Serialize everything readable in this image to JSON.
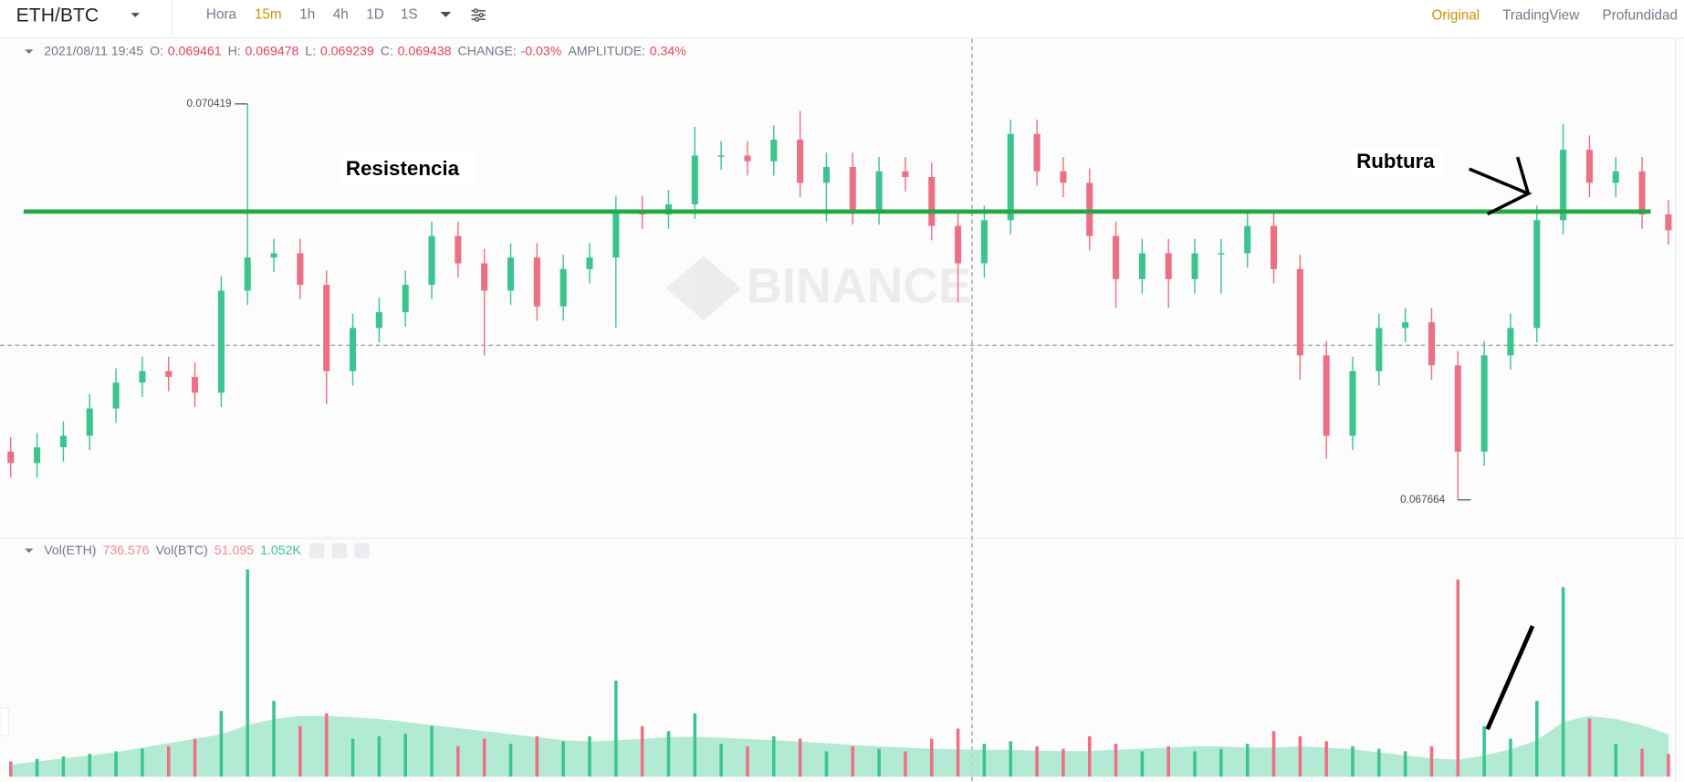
{
  "toolbar": {
    "symbol": "ETH/BTC",
    "intervals": [
      "Hora",
      "15m",
      "1h",
      "4h",
      "1D",
      "1S"
    ],
    "active_interval": 1,
    "views": [
      "Original",
      "TradingView",
      "Profundidad"
    ],
    "active_view": 0
  },
  "chart_data": {
    "type": "candlestick",
    "info": {
      "date": "2021/08/11 19:45",
      "fields": [
        {
          "label": "O:",
          "value": "0.069461"
        },
        {
          "label": "H:",
          "value": "0.069478"
        },
        {
          "label": "L:",
          "value": "0.069239"
        },
        {
          "label": "C:",
          "value": "0.069438"
        },
        {
          "label": "CHANGE:",
          "value": "-0.03%"
        },
        {
          "label": "AMPLITUDE:",
          "value": "0.34%"
        }
      ]
    },
    "watermark": "BINANCE",
    "annotations": [
      "Resistencia",
      "Rubtura"
    ],
    "up_color": "#3cc48f",
    "down_color": "#ec6f84",
    "resistance_color": "#22a845",
    "ylim": [
      0.0674,
      0.07088
    ],
    "resistance": 0.06967,
    "crosshair_price": 0.06874,
    "open": [
      0.068,
      0.06792,
      0.06803,
      0.06811,
      0.0683,
      0.06848,
      0.06856,
      0.06852,
      0.06841,
      0.06912,
      0.06935,
      0.06938,
      0.06916,
      0.06856,
      0.06886,
      0.06897,
      0.06916,
      0.0695,
      0.06931,
      0.06912,
      0.06935,
      0.06901,
      0.06927,
      0.06935,
      0.06968,
      0.06965,
      0.06972,
      0.07006,
      0.07006,
      0.07002,
      0.07017,
      0.06987,
      0.06998,
      0.06968,
      0.06995,
      0.06991,
      0.06957,
      0.06931,
      0.06961,
      0.07021,
      0.06995,
      0.06987,
      0.0695,
      0.0692,
      0.06938,
      0.0692,
      0.06938,
      0.06938,
      0.06957,
      0.06927,
      0.06867,
      0.06811,
      0.06856,
      0.06886,
      0.0689,
      0.0686,
      0.068,
      0.06867,
      0.06886,
      0.06961,
      0.0701,
      0.06987,
      0.06995,
      0.06965
    ],
    "high": [
      0.0681,
      0.06813,
      0.06821,
      0.0684,
      0.06858,
      0.06866,
      0.06866,
      0.06862,
      0.06922,
      0.070419,
      0.06948,
      0.06948,
      0.06926,
      0.06896,
      0.06907,
      0.06926,
      0.0696,
      0.0696,
      0.06941,
      0.06945,
      0.06945,
      0.06937,
      0.06945,
      0.06978,
      0.06978,
      0.06982,
      0.07026,
      0.07016,
      0.07016,
      0.07027,
      0.07037,
      0.07008,
      0.07008,
      0.07005,
      0.07005,
      0.07001,
      0.06967,
      0.06971,
      0.07031,
      0.07031,
      0.07005,
      0.06997,
      0.0696,
      0.06948,
      0.06948,
      0.06948,
      0.06948,
      0.06967,
      0.06967,
      0.06937,
      0.06877,
      0.06866,
      0.06896,
      0.069,
      0.069,
      0.0687,
      0.06877,
      0.06896,
      0.06971,
      0.07028,
      0.0702,
      0.07005,
      0.07005,
      0.06975
    ],
    "low": [
      0.06782,
      0.06782,
      0.06793,
      0.06801,
      0.0682,
      0.06838,
      0.06842,
      0.06831,
      0.06831,
      0.06902,
      0.06925,
      0.06906,
      0.06833,
      0.06846,
      0.06876,
      0.06887,
      0.06906,
      0.06921,
      0.06867,
      0.06902,
      0.06891,
      0.06891,
      0.06917,
      0.06886,
      0.06955,
      0.06955,
      0.06962,
      0.06996,
      0.06992,
      0.06992,
      0.06977,
      0.0696,
      0.06958,
      0.06958,
      0.06981,
      0.06947,
      0.06904,
      0.06921,
      0.06951,
      0.06985,
      0.06977,
      0.0694,
      0.069,
      0.0691,
      0.069,
      0.0691,
      0.0691,
      0.06928,
      0.06917,
      0.0685,
      0.06795,
      0.06801,
      0.06846,
      0.06876,
      0.0685,
      0.067664,
      0.0679,
      0.06857,
      0.06876,
      0.06951,
      0.06977,
      0.06977,
      0.06955,
      0.06944
    ],
    "close": [
      0.06792,
      0.06803,
      0.06811,
      0.0683,
      0.06848,
      0.06856,
      0.06852,
      0.06841,
      0.06912,
      0.06935,
      0.06938,
      0.06916,
      0.06856,
      0.06886,
      0.06897,
      0.06916,
      0.0695,
      0.06931,
      0.06912,
      0.06935,
      0.06901,
      0.06927,
      0.06935,
      0.06968,
      0.06965,
      0.06972,
      0.07006,
      0.07006,
      0.07002,
      0.07017,
      0.06987,
      0.06998,
      0.06968,
      0.06995,
      0.06991,
      0.06957,
      0.06931,
      0.06961,
      0.07021,
      0.06995,
      0.06987,
      0.0695,
      0.0692,
      0.06938,
      0.0692,
      0.06938,
      0.06938,
      0.06957,
      0.06927,
      0.06867,
      0.06811,
      0.06856,
      0.06886,
      0.0689,
      0.0686,
      0.068,
      0.06867,
      0.06886,
      0.06961,
      0.0701,
      0.06987,
      0.06995,
      0.06965,
      0.06954
    ],
    "volume": {
      "labels": [
        "Vol(ETH)",
        "Vol(BTC)"
      ],
      "shown": [
        "736.576",
        "51.095",
        "1.052K"
      ],
      "ylim": [
        0,
        860
      ],
      "ma_color": "#a6e6cc",
      "values": [
        60,
        70,
        80,
        90,
        100,
        110,
        120,
        150,
        260,
        820,
        300,
        200,
        250,
        150,
        160,
        170,
        200,
        120,
        150,
        130,
        160,
        140,
        160,
        380,
        200,
        180,
        250,
        130,
        120,
        160,
        150,
        100,
        120,
        110,
        100,
        150,
        190,
        130,
        140,
        120,
        110,
        160,
        130,
        100,
        120,
        100,
        110,
        130,
        180,
        160,
        140,
        120,
        110,
        100,
        120,
        780,
        200,
        150,
        300,
        750,
        230,
        130,
        110,
        90
      ],
      "ma": [
        48,
        60,
        72,
        84,
        96,
        115,
        132,
        149,
        168,
        204,
        228,
        240,
        240,
        235,
        228,
        216,
        204,
        192,
        180,
        168,
        156,
        144,
        139,
        144,
        149,
        156,
        158,
        154,
        149,
        144,
        139,
        132,
        125,
        120,
        115,
        110,
        108,
        106,
        106,
        103,
        101,
        101,
        106,
        110,
        115,
        120,
        120,
        115,
        115,
        120,
        115,
        108,
        96,
        84,
        72,
        67,
        84,
        108,
        144,
        216,
        240,
        228,
        204,
        168
      ]
    }
  }
}
